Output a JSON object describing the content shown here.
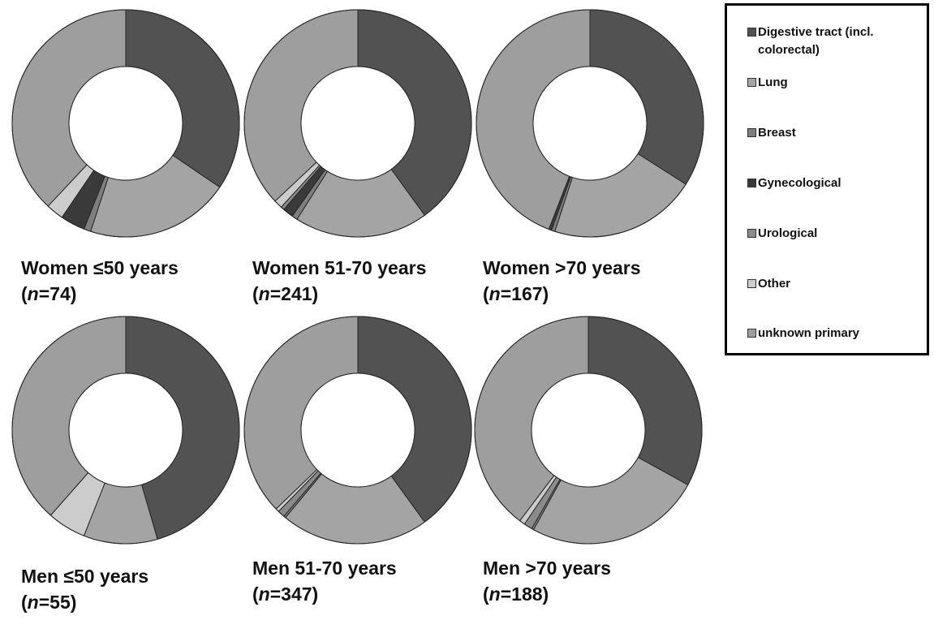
{
  "chart_data": [
    {
      "type": "pie",
      "title": "Women ≤50 years",
      "n_label": "n",
      "n_value": "=74",
      "categories": [
        "Digestive tract (incl. colorectal)",
        "Lung",
        "Breast",
        "Gynecological",
        "Urological",
        "Other",
        "unknown primary"
      ],
      "values": [
        34.5,
        20.5,
        1.0,
        3.5,
        0.0,
        2.5,
        38.0
      ]
    },
    {
      "type": "pie",
      "title": "Women 51-70 years",
      "n_label": "n",
      "n_value": "=241",
      "categories": [
        "Digestive tract (incl. colorectal)",
        "Lung",
        "Breast",
        "Gynecological",
        "Urological",
        "Other",
        "unknown primary"
      ],
      "values": [
        40.0,
        19.0,
        0.8,
        1.5,
        0.5,
        1.2,
        37.0
      ]
    },
    {
      "type": "pie",
      "title": "Women >70 years",
      "n_label": "n",
      "n_value": "=167",
      "categories": [
        "Digestive tract (incl. colorectal)",
        "Lung",
        "Breast",
        "Gynecological",
        "Urological",
        "Other",
        "unknown primary"
      ],
      "values": [
        34.0,
        21.0,
        0.5,
        0.4,
        0.0,
        0.0,
        44.1
      ]
    },
    {
      "type": "pie",
      "title": "Men ≤50 years",
      "n_label": "n",
      "n_value": "=55",
      "categories": [
        "Digestive tract (incl. colorectal)",
        "Lung",
        "Breast",
        "Gynecological",
        "Urological",
        "Other",
        "unknown primary"
      ],
      "values": [
        45.5,
        10.5,
        0.0,
        0.0,
        0.0,
        5.5,
        38.5
      ]
    },
    {
      "type": "pie",
      "title": "Men 51-70 years",
      "n_label": "n",
      "n_value": "=347",
      "categories": [
        "Digestive tract (incl. colorectal)",
        "Lung",
        "Breast",
        "Gynecological",
        "Urological",
        "Other",
        "unknown primary"
      ],
      "values": [
        40.0,
        21.0,
        0.3,
        0.0,
        1.0,
        0.5,
        37.2
      ]
    },
    {
      "type": "pie",
      "title": "Men >70 years",
      "n_label": "n",
      "n_value": "=188",
      "categories": [
        "Digestive tract (incl. colorectal)",
        "Lung",
        "Breast",
        "Gynecological",
        "Urological",
        "Other",
        "unknown primary"
      ],
      "values": [
        33.0,
        25.0,
        0.3,
        0.0,
        1.2,
        0.8,
        39.7
      ]
    }
  ],
  "legend": {
    "entries": [
      "Digestive tract (incl. colorectal)",
      "Lung",
      "Breast",
      "Gynecological",
      "Urological",
      "Other",
      "unknown primary"
    ]
  },
  "colors": {
    "Digestive tract (incl. colorectal)": "#525252",
    "Lung": "#a4a4a4",
    "Breast": "#7e7e7e",
    "Gynecological": "#3a3a3a",
    "Urological": "#8a8a8a",
    "Other": "#cccccc",
    "unknown primary": "#9e9e9e",
    "slice_border": "#262626"
  }
}
